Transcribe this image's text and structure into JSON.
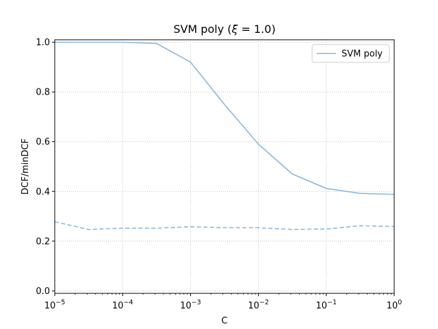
{
  "chart_data": {
    "type": "line",
    "title": "SVM poly (ξ = 1.0)",
    "xlabel": "C",
    "ylabel": "DCF/minDCF",
    "x_scale": "log",
    "xlim": [
      1e-05,
      1
    ],
    "ylim": [
      -0.01,
      1.01
    ],
    "x_ticks": [
      {
        "value": 1e-05,
        "base": "10",
        "exp": "−5"
      },
      {
        "value": 0.0001,
        "base": "10",
        "exp": "−4"
      },
      {
        "value": 0.001,
        "base": "10",
        "exp": "−3"
      },
      {
        "value": 0.01,
        "base": "10",
        "exp": "−2"
      },
      {
        "value": 0.1,
        "base": "10",
        "exp": "−1"
      },
      {
        "value": 1,
        "base": "10",
        "exp": "0"
      }
    ],
    "y_ticks": [
      "0.0",
      "0.2",
      "0.4",
      "0.6",
      "0.8",
      "1.0"
    ],
    "grid": true,
    "grid_style": "dotted",
    "legend_position": "top-right",
    "color": "#8ab8db",
    "series": [
      {
        "name": "SVM poly",
        "style": "solid",
        "x": [
          1e-05,
          3.16e-05,
          0.0001,
          0.000316,
          0.001,
          0.00316,
          0.01,
          0.0316,
          0.1,
          0.316,
          1
        ],
        "values": [
          1.0,
          1.0,
          1.0,
          0.995,
          0.92,
          0.75,
          0.59,
          0.47,
          0.412,
          0.392,
          0.388
        ]
      },
      {
        "style": "dashed",
        "x": [
          1e-05,
          3.16e-05,
          0.0001,
          0.000316,
          0.001,
          0.00316,
          0.01,
          0.0316,
          0.1,
          0.316,
          1
        ],
        "values": [
          0.278,
          0.247,
          0.252,
          0.252,
          0.258,
          0.254,
          0.254,
          0.247,
          0.249,
          0.262,
          0.259
        ]
      }
    ]
  }
}
